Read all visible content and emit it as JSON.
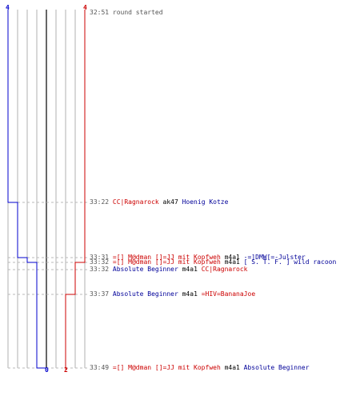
{
  "colors": {
    "red": "#cc0000",
    "blue": "#0000cc",
    "grid": "#b0b0b0",
    "dash": "#b8b8b8",
    "center": "#666666"
  },
  "scores": {
    "blue_start": "4",
    "red_start": "4",
    "blue_end": "0",
    "red_end": "2"
  },
  "events": [
    {
      "time": "32:51",
      "parts": [
        {
          "text": "round started",
          "cls": "gray"
        }
      ]
    },
    {
      "time": "33:22",
      "parts": [
        {
          "text": "CC|Ragnarock",
          "cls": "red"
        },
        {
          "text": " ak47 ",
          "cls": "weap"
        },
        {
          "text": "Hoenig Kotze",
          "cls": "blue"
        }
      ]
    },
    {
      "time": "33:31",
      "parts": [
        {
          "text": "=[] M@dman []=JJ mit Kopfweh",
          "cls": "red"
        },
        {
          "text": " m4a1 ",
          "cls": "weap"
        },
        {
          "text": "-=]DMW[=-Julster",
          "cls": "blue"
        }
      ]
    },
    {
      "time": "33:32",
      "parts": [
        {
          "text": "=[] M@dman []=JJ mit Kopfweh",
          "cls": "red"
        },
        {
          "text": " m4a1 ",
          "cls": "weap"
        },
        {
          "text": "[ S. T. F. ] wild racoon",
          "cls": "blue"
        }
      ]
    },
    {
      "time": "33:32",
      "parts": [
        {
          "text": "Absolute Beginner",
          "cls": "blue"
        },
        {
          "text": " m4a1 ",
          "cls": "weap"
        },
        {
          "text": "CC|Ragnarock",
          "cls": "red"
        }
      ]
    },
    {
      "time": "33:37",
      "parts": [
        {
          "text": "Absolute Beginner",
          "cls": "blue"
        },
        {
          "text": " m4a1 ",
          "cls": "weap"
        },
        {
          "text": "=HIV=BananaJoe",
          "cls": "red"
        }
      ]
    },
    {
      "time": "33:49",
      "parts": [
        {
          "text": "=[] M@dman []=JJ mit Kopfweh",
          "cls": "red"
        },
        {
          "text": " m4a1 ",
          "cls": "weap"
        },
        {
          "text": "Absolute Beginner",
          "cls": "blue"
        }
      ]
    }
  ]
}
